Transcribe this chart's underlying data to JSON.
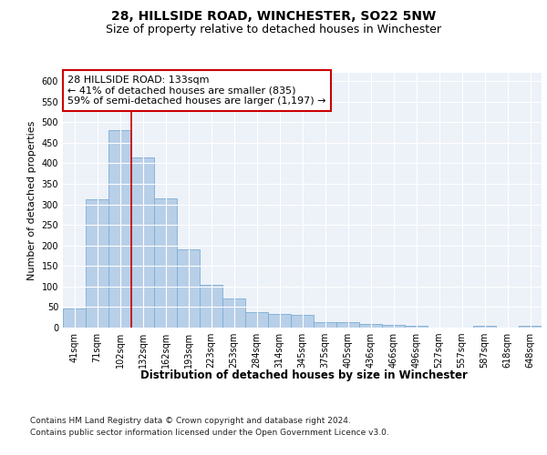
{
  "title": "28, HILLSIDE ROAD, WINCHESTER, SO22 5NW",
  "subtitle": "Size of property relative to detached houses in Winchester",
  "xlabel": "Distribution of detached houses by size in Winchester",
  "ylabel": "Number of detached properties",
  "categories": [
    "41sqm",
    "71sqm",
    "102sqm",
    "132sqm",
    "162sqm",
    "193sqm",
    "223sqm",
    "253sqm",
    "284sqm",
    "314sqm",
    "345sqm",
    "375sqm",
    "405sqm",
    "436sqm",
    "466sqm",
    "496sqm",
    "527sqm",
    "557sqm",
    "587sqm",
    "618sqm",
    "648sqm"
  ],
  "values": [
    47,
    312,
    480,
    413,
    315,
    191,
    104,
    70,
    38,
    33,
    30,
    13,
    14,
    9,
    6,
    4,
    1,
    0,
    4,
    0,
    4
  ],
  "bar_color": "#b8cfe8",
  "bar_edge_color": "#7aadd4",
  "vline_color": "#cc0000",
  "annotation_text": "28 HILLSIDE ROAD: 133sqm\n← 41% of detached houses are smaller (835)\n59% of semi-detached houses are larger (1,197) →",
  "annotation_box_color": "#ffffff",
  "annotation_box_edge_color": "#cc0000",
  "ylim": [
    0,
    620
  ],
  "yticks": [
    0,
    50,
    100,
    150,
    200,
    250,
    300,
    350,
    400,
    450,
    500,
    550,
    600
  ],
  "background_color": "#edf2f9",
  "footer_line1": "Contains HM Land Registry data © Crown copyright and database right 2024.",
  "footer_line2": "Contains public sector information licensed under the Open Government Licence v3.0.",
  "title_fontsize": 10,
  "subtitle_fontsize": 9,
  "xlabel_fontsize": 8.5,
  "ylabel_fontsize": 8,
  "tick_fontsize": 7,
  "annotation_fontsize": 8,
  "footer_fontsize": 6.5
}
